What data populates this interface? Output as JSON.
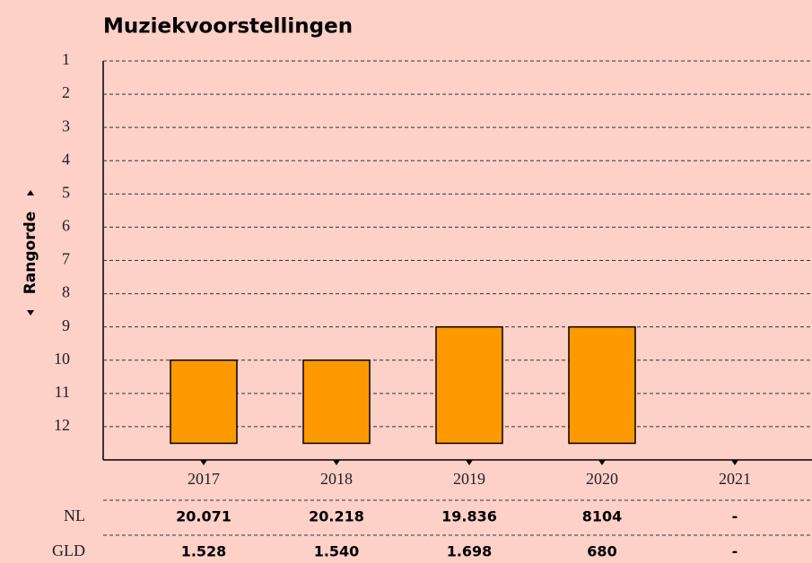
{
  "chart_data": {
    "type": "bar",
    "title": "Muziekvoorstellingen",
    "y_label": "Rangorde",
    "categories": [
      "2017",
      "2018",
      "2019",
      "2020",
      "2021"
    ],
    "values": [
      10,
      10,
      9,
      9,
      null
    ],
    "color": "#ff9900",
    "ylim": [
      13,
      1
    ],
    "yticks": [
      1,
      2,
      3,
      4,
      5,
      6,
      7,
      8,
      9,
      10,
      11,
      12
    ],
    "grid": true,
    "table": [
      {
        "label": "NL",
        "values": [
          "20.071",
          "20.218",
          "19.836",
          "8104",
          "-"
        ]
      },
      {
        "label": "GLD",
        "values": [
          "1.528",
          "1.540",
          "1.698",
          "680",
          "-"
        ]
      }
    ]
  }
}
